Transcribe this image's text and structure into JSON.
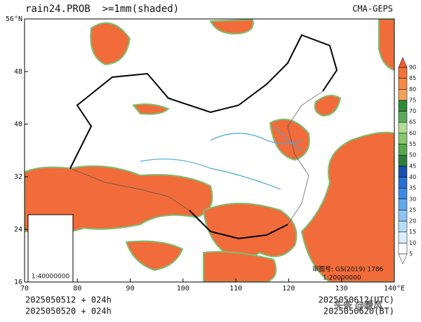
{
  "header": {
    "title": "rain24.PROB  >=1mm(shaded)",
    "source": "CMA-GEPS"
  },
  "map": {
    "xlim": [
      70,
      140
    ],
    "ylim": [
      16,
      56
    ],
    "xticks": [
      70,
      80,
      90,
      100,
      110,
      120,
      130,
      {
        "value": 140,
        "label": "140°E"
      }
    ],
    "yticks": [
      16,
      24,
      32,
      40,
      48,
      {
        "value": 56,
        "label": "56°N"
      }
    ],
    "approval": "审图号: GS(2019) 1786",
    "scale": "1:20000000",
    "inset_scale": "1:40000000"
  },
  "colorbar": {
    "levels": [
      5,
      10,
      15,
      20,
      25,
      30,
      35,
      40,
      45,
      50,
      55,
      60,
      65,
      70,
      75,
      80,
      85,
      90
    ],
    "colors": [
      "#ffffff",
      "#d8eefa",
      "#b5dcf7",
      "#8cc4f2",
      "#62a8ea",
      "#3f8ae0",
      "#2a6fd0",
      "#1b4fae",
      "#2f7d3a",
      "#58a84e",
      "#86c66c",
      "#b2dc94",
      "#5aa85a",
      "#2f8a3a",
      "#f3a25c",
      "#f38a46",
      "#f2723c",
      "#ef5d33"
    ]
  },
  "footer": {
    "init_utc": "2025050512 + 024h",
    "init_bt": "2025050520 + 024h",
    "valid_utc": "2025050612(UTC)",
    "valid_bt": "2025050620(BT)"
  },
  "watermark": "头条 @暖风"
}
